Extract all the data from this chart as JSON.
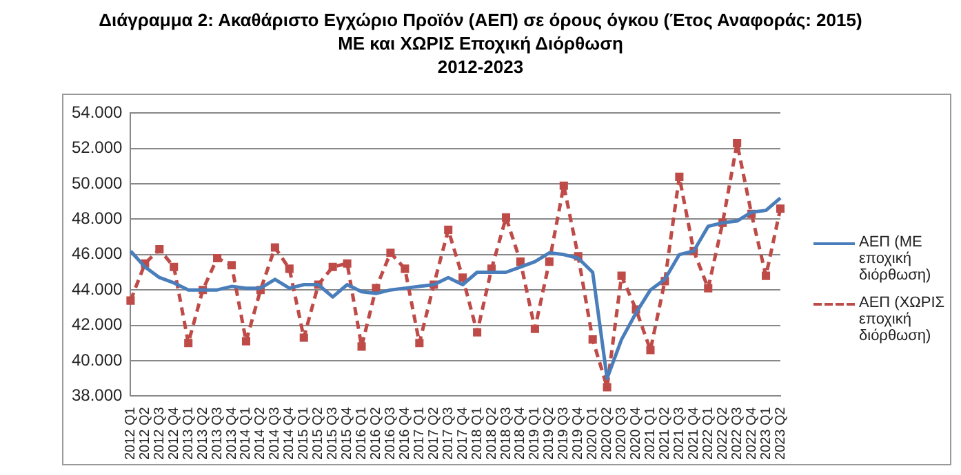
{
  "chart_data": {
    "type": "line",
    "title": "Διάγραμμα 2: Ακαθάριστο Εγχώριο Προϊόν (ΑΕΠ) σε όρους όγκου (Έτος Αναφοράς: 2015)",
    "subtitle": "ΜΕ και ΧΩΡΙΣ Εποχική Διόρθωση\n2012-2023",
    "categories": [
      "2012 Q1",
      "2012 Q2",
      "2012 Q3",
      "2012 Q4",
      "2013 Q1",
      "2013 Q2",
      "2013 Q3",
      "2013 Q4",
      "2014 Q1",
      "2014 Q2",
      "2014 Q3",
      "2014 Q4",
      "2015 Q1",
      "2015 Q2",
      "2015 Q3",
      "2015 Q4",
      "2016 Q1",
      "2016 Q2",
      "2016 Q3",
      "2016 Q4",
      "2017 Q1",
      "2017 Q2",
      "2017 Q3",
      "2017 Q4",
      "2018 Q1",
      "2018 Q2",
      "2018 Q3",
      "2018 Q4",
      "2019 Q1",
      "2019 Q2",
      "2019 Q3",
      "2019 Q4",
      "2020 Q1",
      "2020 Q2",
      "2020 Q3",
      "2020 Q4",
      "2021 Q1",
      "2021 Q2",
      "2021 Q3",
      "2021 Q4",
      "2022 Q1",
      "2022 Q2",
      "2022 Q3",
      "2022 Q4",
      "2023 Q1",
      "2023 Q2"
    ],
    "series": [
      {
        "name": "ΑΕΠ (ΜΕ εποχική διόρθωση)",
        "color": "#4a7ebb",
        "marker": "none",
        "line_style": "solid",
        "values": [
          46200,
          45300,
          44700,
          44400,
          44000,
          44000,
          44000,
          44200,
          44100,
          44100,
          44600,
          44100,
          44300,
          44300,
          43600,
          44300,
          43900,
          43800,
          44000,
          44100,
          44200,
          44300,
          44700,
          44300,
          45000,
          45000,
          45000,
          45300,
          45600,
          46100,
          46000,
          45800,
          45000,
          39000,
          41200,
          42700,
          44000,
          44600,
          46000,
          46200,
          47600,
          47800,
          47900,
          48400,
          48500,
          49200
        ]
      },
      {
        "name": "ΑΕΠ (ΧΩΡΙΣ εποχική διόρθωση)",
        "color": "#be4b48",
        "marker": "square",
        "line_style": "dashed",
        "values": [
          43400,
          45500,
          46300,
          45300,
          41000,
          44000,
          45800,
          45400,
          41100,
          44000,
          46400,
          45200,
          41300,
          44300,
          45300,
          45500,
          40800,
          44100,
          46100,
          45200,
          41000,
          44300,
          47400,
          44700,
          41600,
          45200,
          48100,
          45600,
          41800,
          45600,
          49900,
          45900,
          41200,
          38500,
          44800,
          42900,
          40600,
          44500,
          50400,
          46200,
          44100,
          47800,
          52300,
          48300,
          44800,
          48600
        ]
      }
    ],
    "ylim": [
      38000,
      54000
    ],
    "yticks": [
      {
        "value": 38000,
        "label": "38.000"
      },
      {
        "value": 40000,
        "label": "40.000"
      },
      {
        "value": 42000,
        "label": "42.000"
      },
      {
        "value": 44000,
        "label": "44.000"
      },
      {
        "value": 46000,
        "label": "46.000"
      },
      {
        "value": 48000,
        "label": "48.000"
      },
      {
        "value": 50000,
        "label": "50.000"
      },
      {
        "value": 52000,
        "label": "52.000"
      },
      {
        "value": 54000,
        "label": "54.000"
      }
    ],
    "grid": "y",
    "legend": "right"
  }
}
